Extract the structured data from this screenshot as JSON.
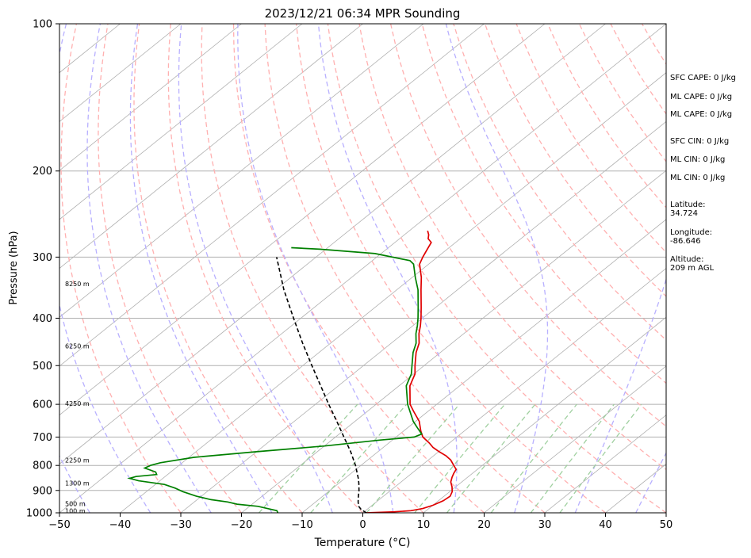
{
  "chart_data": {
    "type": "line",
    "subtype": "skew-T log-P sounding",
    "title": "2023/12/21 06:34 MPR Sounding",
    "xlabel": "Temperature (°C)",
    "ylabel": "Pressure (hPa)",
    "xlim": [
      -50,
      50
    ],
    "ylim": [
      1000,
      100
    ],
    "y_scale": "log",
    "x_ticks": [
      -50,
      -40,
      -30,
      -20,
      -10,
      0,
      10,
      20,
      30,
      40,
      50
    ],
    "x_tick_labels": [
      "−50",
      "−40",
      "−30",
      "−20",
      "−10",
      "0",
      "10",
      "20",
      "30",
      "40",
      "50"
    ],
    "y_ticks": [
      1000,
      900,
      800,
      700,
      600,
      500,
      400,
      300,
      200,
      100
    ],
    "y_tick_labels": [
      "1000",
      "900",
      "800",
      "700",
      "600",
      "500",
      "400",
      "300",
      "200",
      "100"
    ],
    "horizontal_grid": true,
    "height_labels": [
      {
        "p": 990,
        "label": "100 m"
      },
      {
        "p": 958,
        "label": "500 m"
      },
      {
        "p": 870,
        "label": "1300 m"
      },
      {
        "p": 780,
        "label": "2250 m"
      },
      {
        "p": 597,
        "label": "4250 m"
      },
      {
        "p": 456,
        "label": "6250 m"
      },
      {
        "p": 340,
        "label": "8250 m"
      }
    ],
    "series": [
      {
        "role": "temperature",
        "color": "#e00000",
        "points": [
          {
            "p": 1000,
            "t": 0.6
          },
          {
            "p": 995,
            "t": 5.0
          },
          {
            "p": 990,
            "t": 7.5
          },
          {
            "p": 980,
            "t": 9.0
          },
          {
            "p": 965,
            "t": 10.0
          },
          {
            "p": 945,
            "t": 10.8
          },
          {
            "p": 925,
            "t": 11.0
          },
          {
            "p": 905,
            "t": 10.4
          },
          {
            "p": 885,
            "t": 9.4
          },
          {
            "p": 865,
            "t": 8.2
          },
          {
            "p": 845,
            "t": 7.4
          },
          {
            "p": 830,
            "t": 6.9
          },
          {
            "p": 815,
            "t": 6.5
          },
          {
            "p": 800,
            "t": 5.3
          },
          {
            "p": 780,
            "t": 3.7
          },
          {
            "p": 765,
            "t": 2.1
          },
          {
            "p": 750,
            "t": 0.1
          },
          {
            "p": 735,
            "t": -1.8
          },
          {
            "p": 720,
            "t": -3.3
          },
          {
            "p": 700,
            "t": -5.6
          },
          {
            "p": 680,
            "t": -7.2
          },
          {
            "p": 650,
            "t": -9.4
          },
          {
            "p": 620,
            "t": -12.4
          },
          {
            "p": 600,
            "t": -14.4
          },
          {
            "p": 550,
            "t": -18.2
          },
          {
            "p": 520,
            "t": -19.8
          },
          {
            "p": 500,
            "t": -21.5
          },
          {
            "p": 470,
            "t": -24.0
          },
          {
            "p": 450,
            "t": -25.4
          },
          {
            "p": 430,
            "t": -27.4
          },
          {
            "p": 415,
            "t": -28.7
          },
          {
            "p": 400,
            "t": -30.2
          },
          {
            "p": 380,
            "t": -32.4
          },
          {
            "p": 350,
            "t": -36.0
          },
          {
            "p": 330,
            "t": -38.5
          },
          {
            "p": 310,
            "t": -41.5
          },
          {
            "p": 300,
            "t": -42.4
          },
          {
            "p": 290,
            "t": -43.2
          },
          {
            "p": 280,
            "t": -44.0
          },
          {
            "p": 275,
            "t": -45.3
          },
          {
            "p": 270,
            "t": -46.0
          },
          {
            "p": 265,
            "t": -47.0
          }
        ]
      },
      {
        "role": "dewpoint",
        "color": "#008000",
        "points": [
          {
            "p": 1000,
            "t": -14.0
          },
          {
            "p": 990,
            "t": -14.6
          },
          {
            "p": 980,
            "t": -16.6
          },
          {
            "p": 970,
            "t": -18.6
          },
          {
            "p": 960,
            "t": -22.5
          },
          {
            "p": 950,
            "t": -24.5
          },
          {
            "p": 940,
            "t": -27.7
          },
          {
            "p": 925,
            "t": -30.8
          },
          {
            "p": 905,
            "t": -34.0
          },
          {
            "p": 890,
            "t": -36.0
          },
          {
            "p": 875,
            "t": -38.5
          },
          {
            "p": 860,
            "t": -43.5
          },
          {
            "p": 850,
            "t": -45.5
          },
          {
            "p": 843,
            "t": -44.8
          },
          {
            "p": 835,
            "t": -41.8
          },
          {
            "p": 825,
            "t": -42.5
          },
          {
            "p": 810,
            "t": -45.1
          },
          {
            "p": 800,
            "t": -44.7
          },
          {
            "p": 790,
            "t": -43.6
          },
          {
            "p": 770,
            "t": -39.2
          },
          {
            "p": 750,
            "t": -30.0
          },
          {
            "p": 730,
            "t": -20.0
          },
          {
            "p": 710,
            "t": -12.0
          },
          {
            "p": 700,
            "t": -7.0
          },
          {
            "p": 690,
            "t": -6.4
          },
          {
            "p": 670,
            "t": -8.4
          },
          {
            "p": 650,
            "t": -10.4
          },
          {
            "p": 620,
            "t": -13.0
          },
          {
            "p": 600,
            "t": -14.8
          },
          {
            "p": 550,
            "t": -18.8
          },
          {
            "p": 520,
            "t": -20.4
          },
          {
            "p": 500,
            "t": -22.0
          },
          {
            "p": 470,
            "t": -24.5
          },
          {
            "p": 450,
            "t": -25.9
          },
          {
            "p": 430,
            "t": -27.9
          },
          {
            "p": 415,
            "t": -29.2
          },
          {
            "p": 400,
            "t": -30.7
          },
          {
            "p": 380,
            "t": -32.9
          },
          {
            "p": 350,
            "t": -36.5
          },
          {
            "p": 330,
            "t": -39.5
          },
          {
            "p": 310,
            "t": -42.5
          },
          {
            "p": 305,
            "t": -43.8
          },
          {
            "p": 295,
            "t": -51.0
          },
          {
            "p": 289,
            "t": -61.0
          },
          {
            "p": 287,
            "t": -66.0
          }
        ]
      },
      {
        "role": "parcel",
        "color": "#000000",
        "dash": "dashed",
        "points": [
          {
            "p": 1000,
            "t": 0.6
          },
          {
            "p": 985,
            "t": -0.9
          },
          {
            "p": 970,
            "t": -2.0
          },
          {
            "p": 950,
            "t": -3.0
          },
          {
            "p": 930,
            "t": -3.9
          },
          {
            "p": 900,
            "t": -5.2
          },
          {
            "p": 870,
            "t": -6.7
          },
          {
            "p": 850,
            "t": -7.8
          },
          {
            "p": 800,
            "t": -10.9
          },
          {
            "p": 750,
            "t": -14.5
          },
          {
            "p": 700,
            "t": -18.6
          },
          {
            "p": 650,
            "t": -23.0
          },
          {
            "p": 600,
            "t": -27.8
          },
          {
            "p": 550,
            "t": -32.9
          },
          {
            "p": 500,
            "t": -38.5
          },
          {
            "p": 450,
            "t": -44.6
          },
          {
            "p": 400,
            "t": -51.2
          },
          {
            "p": 350,
            "t": -58.6
          },
          {
            "p": 300,
            "t": -66.5
          }
        ]
      }
    ]
  },
  "info_panel": {
    "sfc_cape": "SFC CAPE: 0 J/kg",
    "ml_cape_1": "ML CAPE: 0 J/kg",
    "ml_cape_2": "ML CAPE: 0 J/kg",
    "sfc_cin": "SFC CIN: 0 J/kg",
    "ml_cin_1": "ML CIN: 0 J/kg",
    "ml_cin_2": "ML CIN: 0 J/kg",
    "latitude": "Latitude:\n34.724",
    "longitude": "Longitude:\n-86.646",
    "altitude": "Altitude:\n209 m AGL"
  },
  "colors": {
    "isotherm": "#b0b0b0",
    "dry_adiabat": "#ffb0b0",
    "moist_adiabat": "#b8b0ff",
    "mixing_ratio": "#a0d0a0"
  }
}
